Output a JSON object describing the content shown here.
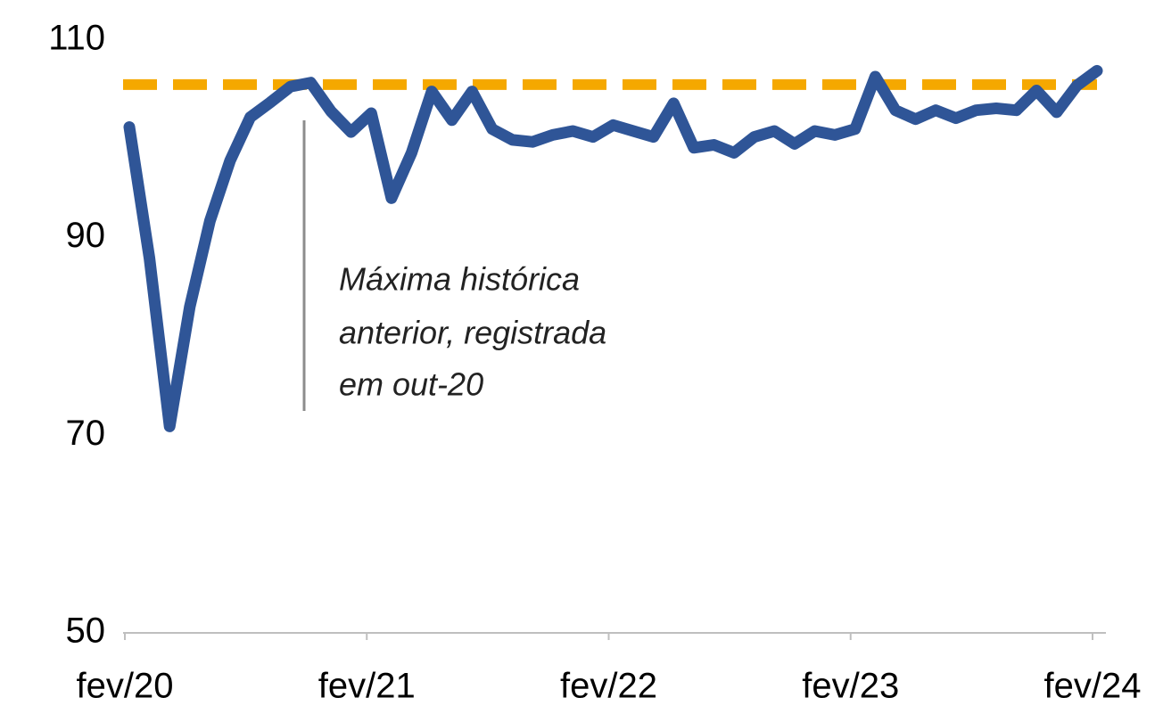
{
  "chart_data": {
    "type": "line",
    "categories": [
      "fev/20",
      null,
      null,
      null,
      null,
      null,
      null,
      null,
      null,
      null,
      null,
      null,
      "fev/21",
      null,
      null,
      null,
      null,
      null,
      null,
      null,
      null,
      null,
      null,
      null,
      "fev/22",
      null,
      null,
      null,
      null,
      null,
      null,
      null,
      null,
      null,
      null,
      null,
      "fev/23",
      null,
      null,
      null,
      null,
      null,
      null,
      null,
      null,
      null,
      null,
      null,
      "fev/24"
    ],
    "series": [
      {
        "color": "#2f5597",
        "values": [
          101.2,
          87.9,
          70.9,
          83,
          91.7,
          97.8,
          102.2,
          103.7,
          105.3,
          105.7,
          102.8,
          100.7,
          102.6,
          94,
          98.6,
          104.8,
          101.9,
          104.8,
          101,
          99.9,
          99.7,
          100.4,
          100.8,
          100.2,
          101.4,
          100.8,
          100.2,
          103.6,
          99.1,
          99.4,
          98.6,
          100.2,
          100.8,
          99.5,
          100.8,
          100.4,
          101,
          106.3,
          102.9,
          102,
          102.9,
          102.1,
          102.9,
          103.1,
          102.9,
          104.9,
          102.7,
          105.4,
          106.9
        ]
      }
    ],
    "reference_line": {
      "value": 105.5,
      "color": "#f5a800"
    },
    "annotation": [
      "Máxima histórica",
      "anterior, registrada",
      "em out-20"
    ],
    "ylim": [
      50,
      110
    ],
    "yticks": [
      50,
      70,
      90,
      110
    ],
    "grid": false
  }
}
